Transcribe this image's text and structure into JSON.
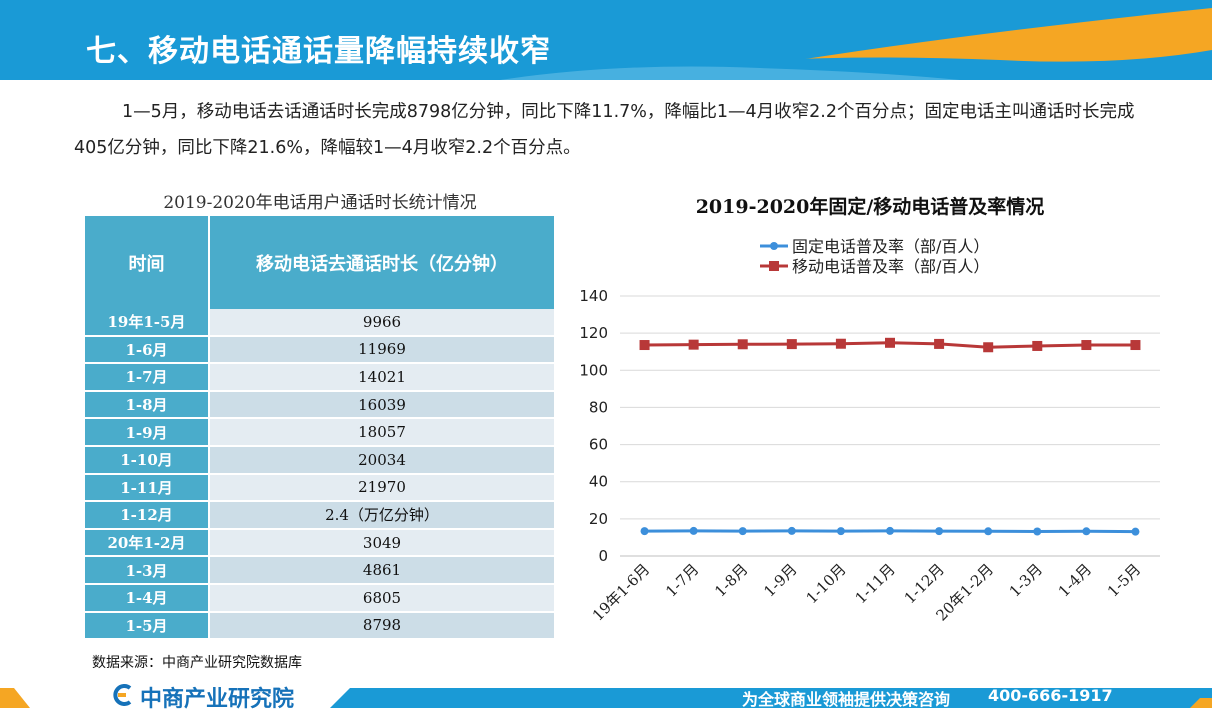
{
  "header": {
    "title": "七、移动电话通话量降幅持续收窄"
  },
  "intro": "1—5月，移动电话去话通话时长完成8798亿分钟，同比下降11.7%，降幅比1—4月收窄2.2个百分点；固定电话主叫通话时长完成405亿分钟，同比下降21.6%，降幅较1—4月收窄2.2个百分点。",
  "table": {
    "title": "2019-2020年电话用户通话时长统计情况",
    "headers": [
      "时间",
      "移动电话去通话时长（亿分钟）"
    ],
    "rows": [
      [
        "19年1-5月",
        "9966"
      ],
      [
        "1-6月",
        "11969"
      ],
      [
        "1-7月",
        "14021"
      ],
      [
        "1-8月",
        "16039"
      ],
      [
        "1-9月",
        "18057"
      ],
      [
        "1-10月",
        "20034"
      ],
      [
        "1-11月",
        "21970"
      ],
      [
        "1-12月",
        "2.4（万亿分钟）"
      ],
      [
        "20年1-2月",
        "3049"
      ],
      [
        "1-3月",
        "4861"
      ],
      [
        "1-4月",
        "6805"
      ],
      [
        "1-5月",
        "8798"
      ]
    ]
  },
  "source": "数据来源：中商产业研究院数据库",
  "chart_data": {
    "type": "line",
    "title": "2019-2020年固定/移动电话普及率情况",
    "categories": [
      "19年1-6月",
      "1-7月",
      "1-8月",
      "1-9月",
      "1-10月",
      "1-11月",
      "1-12月",
      "20年1-2月",
      "1-3月",
      "1-4月",
      "1-5月"
    ],
    "series": [
      {
        "name": "固定电话普及率（部/百人）",
        "color": "#3c8fdb",
        "marker": "circle",
        "values": [
          13.4,
          13.5,
          13.4,
          13.5,
          13.4,
          13.5,
          13.4,
          13.3,
          13.2,
          13.3,
          13.1
        ]
      },
      {
        "name": "移动电话普及率（部/百人）",
        "color": "#b83838",
        "marker": "square",
        "values": [
          113.6,
          113.8,
          114.0,
          114.1,
          114.3,
          114.8,
          114.2,
          112.4,
          113.1,
          113.6,
          113.6
        ]
      }
    ],
    "yticks": [
      "0",
      "20",
      "40",
      "60",
      "80",
      "100",
      "120",
      "140"
    ],
    "ylim": [
      0,
      140
    ],
    "legend": "top",
    "grid": true
  },
  "footer": {
    "logo": "中商产业研究院",
    "slogan": "为全球商业领袖提供决策咨询",
    "phone": "400-666-1917"
  },
  "colors": {
    "header_blue": "#1a9ad6",
    "header_orange": "#f5a623",
    "table_header": "#4aaccb"
  }
}
